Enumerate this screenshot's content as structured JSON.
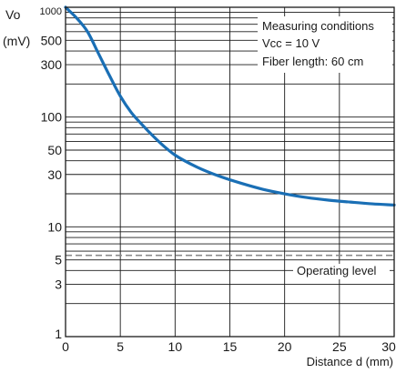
{
  "chart_data": {
    "type": "line",
    "y_scale": "log",
    "xlabel": "Distance d (mm)",
    "ylabel_line1": "Vo",
    "ylabel_line2": "(mV)",
    "xlim": [
      0,
      30
    ],
    "ylim": [
      1,
      1000
    ],
    "x_ticks": [
      0,
      5,
      10,
      15,
      20,
      25,
      30
    ],
    "y_ticks": [
      {
        "value": 1000,
        "label": "1000"
      },
      {
        "value": 500,
        "label": "500"
      },
      {
        "value": 300,
        "label": "300"
      },
      {
        "value": 100,
        "label": "100"
      },
      {
        "value": 50,
        "label": "50"
      },
      {
        "value": 30,
        "label": "30"
      },
      {
        "value": 10,
        "label": "10"
      },
      {
        "value": 5,
        "label": "5"
      },
      {
        "value": 3,
        "label": "3"
      },
      {
        "value": 1,
        "label": "1"
      }
    ],
    "grid": true,
    "annotations": {
      "conditions": [
        "Measuring conditions",
        "Vcc = 10 V",
        "Fiber length: 60 cm"
      ],
      "operating_level_label": "Operating level"
    },
    "operating_level": 5.5,
    "series": [
      {
        "color": "#1a6fb5",
        "x": [
          0,
          1,
          2,
          3,
          4,
          5,
          6,
          7,
          8,
          9,
          10,
          12,
          14,
          16,
          18,
          20,
          22,
          24,
          26,
          28,
          30
        ],
        "y": [
          1000,
          800,
          600,
          380,
          240,
          155,
          110,
          85,
          67,
          54,
          45,
          35,
          29,
          25,
          22,
          20,
          18.5,
          17.5,
          16.8,
          16.2,
          15.8
        ]
      }
    ],
    "colors": {
      "axis": "#1a1a1a",
      "grid": "#1a1a1a",
      "curve": "#1a6fb5",
      "operating_line": "#8a8a8a"
    }
  }
}
